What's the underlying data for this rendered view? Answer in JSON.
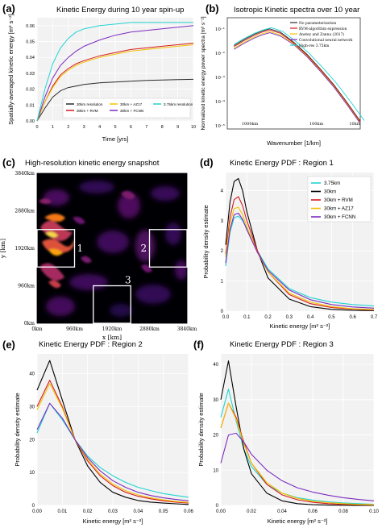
{
  "panels": {
    "a": {
      "letter": "(a)",
      "title": "Kinetic Energy during 10 year spin-up"
    },
    "b": {
      "letter": "(b)",
      "title": "Isotropic Kinetic spectra over 10 year"
    },
    "c": {
      "letter": "(c)",
      "title": "High-resolution kinetic energy snapshot"
    },
    "d": {
      "letter": "(d)",
      "title": "Kinetic Energy PDF : Region 1"
    },
    "e": {
      "letter": "(e)",
      "title": "Kinetic Energy PDF : Region 2"
    },
    "f": {
      "letter": "(f)",
      "title": "Kinetic Energy PDF : Region 3"
    }
  },
  "chart_data": [
    {
      "id": "a",
      "type": "line",
      "title": "Kinetic Energy during 10 year spin-up",
      "xlabel": "Time [yrs]",
      "ylabel": "Spatially-averaged kinetic energy [m² s⁻²]",
      "xlim": [
        0,
        10
      ],
      "ylim": [
        0,
        0.065
      ],
      "xticks": [
        "0",
        "1",
        "2",
        "3",
        "4",
        "5",
        "6",
        "7",
        "8",
        "9",
        "10"
      ],
      "yticks": [
        "0.00",
        "0.01",
        "0.02",
        "0.03",
        "0.04",
        "0.05",
        "0.06"
      ],
      "legend": [
        {
          "label": "30km resolution",
          "color": "#2b2b2b"
        },
        {
          "label": "30km + RVM",
          "color": "#d7191c"
        },
        {
          "label": "30km + AZ17",
          "color": "#f2c200"
        },
        {
          "label": "30km + FCNN",
          "color": "#7b2cbf"
        },
        {
          "label": "3.75km resolution",
          "color": "#22d3d3"
        }
      ],
      "legend_position": "lower-right",
      "series": [
        {
          "name": "30km resolution",
          "color": "#2b2b2b",
          "x": [
            0,
            0.5,
            1,
            1.5,
            2,
            2.5,
            3,
            4,
            5,
            6,
            7,
            8,
            9,
            10
          ],
          "y": [
            0,
            0.008,
            0.015,
            0.019,
            0.021,
            0.022,
            0.023,
            0.024,
            0.0245,
            0.025,
            0.0255,
            0.0258,
            0.026,
            0.0262
          ]
        },
        {
          "name": "30km + RVM",
          "color": "#d7191c",
          "x": [
            0,
            0.5,
            1,
            1.5,
            2,
            2.5,
            3,
            4,
            5,
            6,
            7,
            8,
            9,
            10
          ],
          "y": [
            0,
            0.012,
            0.022,
            0.029,
            0.033,
            0.036,
            0.038,
            0.041,
            0.043,
            0.045,
            0.046,
            0.047,
            0.048,
            0.049
          ]
        },
        {
          "name": "30km + AZ17",
          "color": "#f2c200",
          "x": [
            0,
            0.5,
            1,
            1.5,
            2,
            2.5,
            3,
            4,
            5,
            6,
            7,
            8,
            9,
            10
          ],
          "y": [
            0,
            0.012,
            0.021,
            0.028,
            0.032,
            0.035,
            0.037,
            0.04,
            0.042,
            0.044,
            0.045,
            0.046,
            0.047,
            0.048
          ]
        },
        {
          "name": "30km + FCNN",
          "color": "#7b2cbf",
          "x": [
            0,
            0.5,
            1,
            1.5,
            2,
            2.5,
            3,
            4,
            5,
            6,
            7,
            8,
            9,
            10
          ],
          "y": [
            0,
            0.015,
            0.027,
            0.035,
            0.04,
            0.044,
            0.047,
            0.051,
            0.054,
            0.056,
            0.057,
            0.058,
            0.059,
            0.06
          ]
        },
        {
          "name": "3.75km resolution",
          "color": "#22d3d3",
          "x": [
            0,
            0.5,
            1,
            1.5,
            2,
            2.5,
            3,
            4,
            5,
            6,
            7,
            8,
            9,
            10
          ],
          "y": [
            0,
            0.02,
            0.036,
            0.046,
            0.052,
            0.056,
            0.058,
            0.06,
            0.061,
            0.062,
            0.062,
            0.062,
            0.062,
            0.062
          ]
        }
      ]
    },
    {
      "id": "b",
      "type": "line",
      "scale": "log-log",
      "title": "Isotropic Kinetic spectra over 10 year",
      "xlabel": "Wavenumber [1/km]",
      "ylabel": "Normalized kinetic energy power spectra [m³ s⁻²]",
      "xticks": [
        "1000km",
        "100km",
        "10km"
      ],
      "yticks": [
        "10⁻¹",
        "10⁻²",
        "10⁻³",
        "10⁻⁴",
        "10⁻⁵"
      ],
      "legend": [
        {
          "label": "No parameterization",
          "color": "#2b2b2b"
        },
        {
          "label": "RVM-algorithm expression",
          "color": "#d7191c"
        },
        {
          "label": "Anstey and Zanna (2017)",
          "color": "#f2c200"
        },
        {
          "label": "Convolutional neural network",
          "color": "#7b2cbf"
        },
        {
          "label": "High-res 3.75km",
          "color": "#22d3d3"
        }
      ],
      "legend_position": "top-right",
      "series_shape": [
        [
          0.05,
          0.25
        ],
        [
          0.12,
          0.2
        ],
        [
          0.2,
          0.15
        ],
        [
          0.26,
          0.12
        ],
        [
          0.32,
          0.1
        ],
        [
          0.4,
          0.13
        ],
        [
          0.5,
          0.22
        ],
        [
          0.6,
          0.33
        ],
        [
          0.7,
          0.46
        ],
        [
          0.8,
          0.6
        ],
        [
          0.9,
          0.76
        ],
        [
          1.0,
          0.93
        ]
      ]
    },
    {
      "id": "c",
      "type": "heatmap",
      "title": "High-resolution kinetic energy snapshot",
      "xlabel": "x [km]",
      "ylabel": "y [km]",
      "xticks": [
        "0km",
        "960km",
        "1920km",
        "2880km",
        "3840km"
      ],
      "yticks": [
        "0km",
        "960km",
        "1920km",
        "2880km",
        "3840km"
      ],
      "regions": [
        {
          "label": "1",
          "x": [
            0,
            960
          ],
          "y": [
            1440,
            2400
          ]
        },
        {
          "label": "2",
          "x": [
            2880,
            3840
          ],
          "y": [
            1440,
            2400
          ]
        },
        {
          "label": "3",
          "x": [
            1440,
            2400
          ],
          "y": [
            0,
            960
          ]
        }
      ],
      "colormap": "inferno"
    },
    {
      "id": "d",
      "type": "line",
      "title": "Kinetic Energy PDF : Region 1",
      "xlabel": "Kinetic energy [m² s⁻²]",
      "ylabel": "Probability density estimate",
      "xlim": [
        0,
        0.7
      ],
      "ylim": [
        0,
        4.6
      ],
      "xticks": [
        "0.0",
        "0.1",
        "0.2",
        "0.3",
        "0.4",
        "0.5",
        "0.6",
        "0.7"
      ],
      "yticks": [
        "0",
        "1",
        "2",
        "3",
        "4"
      ],
      "legend": [
        {
          "label": "3.75km",
          "color": "#22d3d3"
        },
        {
          "label": "30km",
          "color": "#000000"
        },
        {
          "label": "30km + RVM",
          "color": "#d7191c"
        },
        {
          "label": "30km + AZ17",
          "color": "#f2c200"
        },
        {
          "label": "30km + FCNN",
          "color": "#7b2cbf"
        }
      ],
      "legend_position": "top-right",
      "series": [
        {
          "name": "3.75km",
          "color": "#22d3d3",
          "x": [
            0,
            0.02,
            0.04,
            0.06,
            0.08,
            0.1,
            0.15,
            0.2,
            0.3,
            0.4,
            0.5,
            0.6,
            0.7
          ],
          "y": [
            1.5,
            2.6,
            3.1,
            3.15,
            3.0,
            2.75,
            2.0,
            1.4,
            0.75,
            0.45,
            0.3,
            0.22,
            0.17
          ]
        },
        {
          "name": "30km",
          "color": "#000000",
          "x": [
            0,
            0.02,
            0.04,
            0.06,
            0.08,
            0.1,
            0.15,
            0.2,
            0.3,
            0.4,
            0.5,
            0.6,
            0.7
          ],
          "y": [
            2.2,
            3.6,
            4.3,
            4.4,
            4.0,
            3.3,
            2.0,
            1.1,
            0.4,
            0.15,
            0.06,
            0.03,
            0.02
          ]
        },
        {
          "name": "30km + RVM",
          "color": "#d7191c",
          "x": [
            0,
            0.02,
            0.04,
            0.06,
            0.08,
            0.1,
            0.15,
            0.2,
            0.3,
            0.4,
            0.5,
            0.6,
            0.7
          ],
          "y": [
            1.9,
            3.1,
            3.7,
            3.8,
            3.5,
            3.0,
            2.0,
            1.3,
            0.55,
            0.25,
            0.12,
            0.07,
            0.04
          ]
        },
        {
          "name": "30km + AZ17",
          "color": "#f2c200",
          "x": [
            0,
            0.02,
            0.04,
            0.06,
            0.08,
            0.1,
            0.15,
            0.2,
            0.3,
            0.4,
            0.5,
            0.6,
            0.7
          ],
          "y": [
            1.8,
            2.9,
            3.4,
            3.45,
            3.2,
            2.8,
            1.95,
            1.3,
            0.6,
            0.3,
            0.15,
            0.08,
            0.05
          ]
        },
        {
          "name": "30km + FCNN",
          "color": "#7b2cbf",
          "x": [
            0,
            0.02,
            0.04,
            0.06,
            0.08,
            0.1,
            0.15,
            0.2,
            0.3,
            0.4,
            0.5,
            0.6,
            0.7
          ],
          "y": [
            1.6,
            2.7,
            3.2,
            3.25,
            3.05,
            2.7,
            1.95,
            1.35,
            0.7,
            0.38,
            0.22,
            0.14,
            0.1
          ]
        }
      ]
    },
    {
      "id": "e",
      "type": "line",
      "title": "Kinetic Energy PDF : Region 2",
      "xlabel": "Kinetic energy [m² s⁻²]",
      "ylabel": "Probability density estimate",
      "xlim": [
        0,
        0.06
      ],
      "ylim": [
        0,
        46
      ],
      "xticks": [
        "0.00",
        "0.01",
        "0.02",
        "0.03",
        "0.04",
        "0.05",
        "0.06"
      ],
      "yticks": [
        "0",
        "10",
        "20",
        "30",
        "40"
      ],
      "series": [
        {
          "name": "3.75km",
          "color": "#22d3d3",
          "x": [
            0,
            0.005,
            0.01,
            0.015,
            0.02,
            0.025,
            0.03,
            0.035,
            0.04,
            0.045,
            0.05,
            0.055,
            0.06
          ],
          "y": [
            22,
            31,
            26,
            20,
            15,
            11.5,
            9,
            7,
            5.5,
            4.5,
            3.6,
            3,
            2.5
          ]
        },
        {
          "name": "30km",
          "color": "#000000",
          "x": [
            0,
            0.005,
            0.01,
            0.015,
            0.02,
            0.025,
            0.03,
            0.035,
            0.04,
            0.045,
            0.05,
            0.055,
            0.06
          ],
          "y": [
            35,
            44,
            32,
            20,
            12,
            7,
            4,
            2.5,
            1.5,
            1,
            0.7,
            0.5,
            0.3
          ]
        },
        {
          "name": "30km + RVM",
          "color": "#d7191c",
          "x": [
            0,
            0.005,
            0.01,
            0.015,
            0.02,
            0.025,
            0.03,
            0.035,
            0.04,
            0.045,
            0.05,
            0.055,
            0.06
          ],
          "y": [
            30,
            38,
            30,
            20,
            13.5,
            9,
            6,
            4,
            2.8,
            2,
            1.4,
            1,
            0.7
          ]
        },
        {
          "name": "30km + AZ17",
          "color": "#f2c200",
          "x": [
            0,
            0.005,
            0.01,
            0.015,
            0.02,
            0.025,
            0.03,
            0.035,
            0.04,
            0.045,
            0.05,
            0.055,
            0.06
          ],
          "y": [
            29,
            37,
            29.5,
            20,
            14,
            9.5,
            6.5,
            4.5,
            3.2,
            2.3,
            1.7,
            1.2,
            0.9
          ]
        },
        {
          "name": "30km + FCNN",
          "color": "#7b2cbf",
          "x": [
            0,
            0.005,
            0.01,
            0.015,
            0.02,
            0.025,
            0.03,
            0.035,
            0.04,
            0.045,
            0.05,
            0.055,
            0.06
          ],
          "y": [
            23,
            31,
            26.5,
            20,
            14.5,
            10.5,
            7.5,
            5.5,
            4,
            3,
            2.3,
            1.8,
            1.4
          ]
        }
      ]
    },
    {
      "id": "f",
      "type": "line",
      "title": "Kinetic Energy PDF : Region 3",
      "xlabel": "Kinetic energy [m² s⁻²]",
      "ylabel": "Probability density estimate",
      "xlim": [
        0,
        0.1
      ],
      "ylim": [
        0,
        43
      ],
      "xticks": [
        "0.00",
        "0.02",
        "0.04",
        "0.06",
        "0.08",
        "0.10"
      ],
      "yticks": [
        "0",
        "10",
        "20",
        "30",
        "40"
      ],
      "series": [
        {
          "name": "3.75km",
          "color": "#22d3d3",
          "x": [
            0,
            0.005,
            0.01,
            0.015,
            0.02,
            0.03,
            0.04,
            0.05,
            0.06,
            0.07,
            0.08,
            0.09,
            0.1
          ],
          "y": [
            25,
            33,
            24,
            16,
            11,
            6,
            3.5,
            2.2,
            1.5,
            1,
            0.7,
            0.5,
            0.3
          ]
        },
        {
          "name": "30km",
          "color": "#000000",
          "x": [
            0,
            0.005,
            0.01,
            0.015,
            0.02,
            0.03,
            0.04,
            0.05,
            0.06,
            0.07,
            0.08,
            0.09,
            0.1
          ],
          "y": [
            30,
            41,
            28,
            16,
            9,
            3.5,
            1.3,
            0.5,
            0.2,
            0.1,
            0.05,
            0.02,
            0.01
          ]
        },
        {
          "name": "30km + RVM",
          "color": "#d7191c",
          "x": [
            0,
            0.005,
            0.01,
            0.015,
            0.02,
            0.03,
            0.04,
            0.05,
            0.06,
            0.07,
            0.08,
            0.09,
            0.1
          ],
          "y": [
            22,
            29,
            25,
            18,
            12,
            6,
            3,
            1.6,
            0.9,
            0.5,
            0.3,
            0.2,
            0.1
          ]
        },
        {
          "name": "30km + AZ17",
          "color": "#f2c200",
          "x": [
            0,
            0.005,
            0.01,
            0.015,
            0.02,
            0.03,
            0.04,
            0.05,
            0.06,
            0.07,
            0.08,
            0.09,
            0.1
          ],
          "y": [
            22,
            29,
            24.5,
            17.5,
            12,
            6.5,
            3.5,
            2,
            1.2,
            0.8,
            0.5,
            0.3,
            0.2
          ]
        },
        {
          "name": "30km + FCNN",
          "color": "#7b2cbf",
          "x": [
            0,
            0.005,
            0.01,
            0.015,
            0.02,
            0.03,
            0.04,
            0.05,
            0.06,
            0.07,
            0.08,
            0.09,
            0.1
          ],
          "y": [
            12,
            20,
            20.5,
            18,
            14.5,
            10,
            7,
            5,
            3.8,
            2.9,
            2.2,
            1.7,
            1.3
          ]
        }
      ]
    }
  ]
}
